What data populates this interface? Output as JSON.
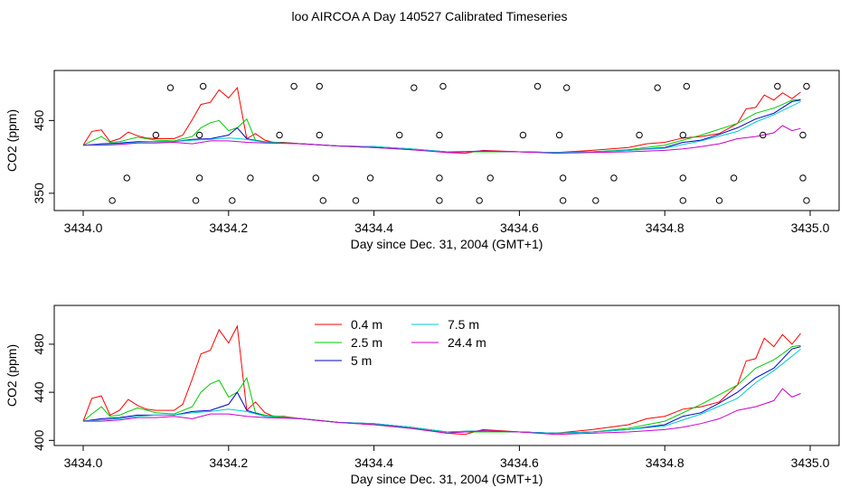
{
  "title": "loo AIRCOA A  Day 140527  Calibrated Timeseries",
  "chart_data": [
    {
      "type": "scatter",
      "xlabel": "Day since Dec. 31, 2004 (GMT+1)",
      "ylabel": "CO2 (ppm)",
      "xlim": [
        3434.0,
        3435.0
      ],
      "ylim": [
        330,
        515
      ],
      "x_ticks": [
        3434.0,
        3434.2,
        3434.4,
        3434.6,
        3434.8,
        3435.0
      ],
      "x_tick_labels": [
        "3434.0",
        "3434.2",
        "3434.4",
        "3434.6",
        "3434.8",
        "3435.0"
      ],
      "y_ticks": [
        350,
        450
      ],
      "y_tick_labels": [
        "350",
        "450"
      ],
      "grid": false,
      "series": [
        {
          "color": "#ff0000",
          "x": [
            3434.0,
            3434.012,
            3434.025,
            3434.037,
            3434.05,
            3434.062,
            3434.075,
            3434.087,
            3434.1,
            3434.112,
            3434.125,
            3434.137,
            3434.15,
            3434.162,
            3434.175,
            3434.187,
            3434.2,
            3434.212,
            3434.225,
            3434.237,
            3434.25,
            3434.262,
            3434.275,
            3434.3,
            3434.35,
            3434.4,
            3434.45,
            3434.5,
            3434.525,
            3434.55,
            3434.6,
            3434.65,
            3434.7,
            3434.75,
            3434.775,
            3434.8,
            3434.825,
            3434.85,
            3434.875,
            3434.9,
            3434.912,
            3434.925,
            3434.937,
            3434.95,
            3434.962,
            3434.975,
            3434.987
          ],
          "y": [
            416,
            435,
            437,
            421,
            425,
            434,
            429,
            426,
            425,
            425,
            425,
            430,
            451,
            472,
            475,
            492,
            481,
            495,
            425,
            432,
            423,
            420,
            420,
            418,
            415,
            413,
            411,
            406,
            405,
            409,
            407,
            406,
            409,
            413,
            418,
            420,
            426,
            428,
            432,
            446,
            466,
            468,
            485,
            478,
            488,
            480,
            489
          ]
        },
        {
          "color": "#00cc00",
          "x": [
            3434.0,
            3434.012,
            3434.025,
            3434.037,
            3434.05,
            3434.062,
            3434.075,
            3434.1,
            3434.125,
            3434.15,
            3434.162,
            3434.175,
            3434.187,
            3434.2,
            3434.212,
            3434.225,
            3434.237,
            3434.25,
            3434.3,
            3434.35,
            3434.4,
            3434.45,
            3434.5,
            3434.55,
            3434.6,
            3434.65,
            3434.7,
            3434.75,
            3434.8,
            3434.85,
            3434.9,
            3434.925,
            3434.95,
            3434.962,
            3434.975,
            3434.987
          ],
          "y": [
            416,
            422,
            428,
            420,
            421,
            424,
            427,
            423,
            422,
            428,
            440,
            447,
            450,
            436,
            440,
            452,
            423,
            421,
            418,
            415,
            413,
            410,
            407,
            407,
            407,
            406,
            407,
            410,
            416,
            430,
            446,
            460,
            467,
            472,
            478,
            479
          ]
        },
        {
          "color": "#0000cc",
          "x": [
            3434.0,
            3434.025,
            3434.05,
            3434.075,
            3434.1,
            3434.125,
            3434.15,
            3434.175,
            3434.2,
            3434.212,
            3434.225,
            3434.25,
            3434.3,
            3434.35,
            3434.4,
            3434.45,
            3434.5,
            3434.55,
            3434.6,
            3434.65,
            3434.7,
            3434.75,
            3434.8,
            3434.825,
            3434.85,
            3434.875,
            3434.9,
            3434.925,
            3434.95,
            3434.975,
            3434.987
          ],
          "y": [
            416,
            418,
            419,
            421,
            421,
            421,
            424,
            425,
            430,
            440,
            425,
            420,
            418,
            415,
            414,
            411,
            407,
            408,
            407,
            406,
            407,
            409,
            413,
            420,
            423,
            431,
            440,
            452,
            460,
            476,
            478
          ]
        },
        {
          "color": "#00cccc",
          "x": [
            3434.0,
            3434.025,
            3434.05,
            3434.075,
            3434.1,
            3434.125,
            3434.15,
            3434.175,
            3434.2,
            3434.225,
            3434.25,
            3434.3,
            3434.35,
            3434.4,
            3434.45,
            3434.5,
            3434.55,
            3434.6,
            3434.65,
            3434.7,
            3434.75,
            3434.8,
            3434.85,
            3434.9,
            3434.925,
            3434.95,
            3434.975,
            3434.987
          ],
          "y": [
            416,
            417,
            418,
            420,
            421,
            421,
            423,
            424,
            426,
            424,
            420,
            418,
            415,
            414,
            411,
            407,
            408,
            407,
            406,
            407,
            409,
            412,
            422,
            435,
            448,
            458,
            470,
            476
          ]
        },
        {
          "color": "#cc00cc",
          "x": [
            3434.0,
            3434.025,
            3434.05,
            3434.075,
            3434.1,
            3434.125,
            3434.15,
            3434.175,
            3434.2,
            3434.225,
            3434.25,
            3434.3,
            3434.35,
            3434.4,
            3434.45,
            3434.5,
            3434.55,
            3434.6,
            3434.65,
            3434.7,
            3434.75,
            3434.8,
            3434.825,
            3434.85,
            3434.875,
            3434.9,
            3434.925,
            3434.95,
            3434.962,
            3434.975,
            3434.987
          ],
          "y": [
            416,
            416,
            417,
            419,
            419,
            420,
            418,
            422,
            422,
            420,
            419,
            418,
            415,
            413,
            410,
            406,
            408,
            407,
            405,
            406,
            407,
            409,
            411,
            414,
            418,
            425,
            428,
            433,
            443,
            436,
            439
          ]
        }
      ],
      "points": {
        "x": [
          3434.04,
          3434.06,
          3434.1,
          3434.12,
          3434.155,
          3434.16,
          3434.16,
          3434.165,
          3434.205,
          3434.23,
          3434.27,
          3434.29,
          3434.32,
          3434.325,
          3434.325,
          3434.33,
          3434.375,
          3434.395,
          3434.435,
          3434.455,
          3434.49,
          3434.49,
          3434.49,
          3434.495,
          3434.545,
          3434.56,
          3434.605,
          3434.625,
          3434.655,
          3434.66,
          3434.66,
          3434.665,
          3434.705,
          3434.73,
          3434.765,
          3434.79,
          3434.825,
          3434.825,
          3434.825,
          3434.83,
          3434.875,
          3434.895,
          3434.935,
          3434.955,
          3434.99,
          3434.99,
          3434.995,
          3434.995
        ],
        "y": [
          340,
          371,
          430,
          495,
          340,
          371,
          430,
          497,
          340,
          371,
          430,
          497,
          371,
          430,
          497,
          340,
          340,
          371,
          430,
          495,
          340,
          371,
          430,
          497,
          340,
          371,
          430,
          497,
          430,
          371,
          340,
          495,
          340,
          371,
          430,
          495,
          430,
          371,
          340,
          497,
          340,
          371,
          430,
          497,
          430,
          371,
          497,
          340
        ]
      }
    },
    {
      "type": "line",
      "xlabel": "Day since Dec. 31, 2004 (GMT+1)",
      "ylabel": "CO2 (ppm)",
      "xlim": [
        3434.0,
        3435.0
      ],
      "ylim": [
        398,
        510
      ],
      "x_ticks": [
        3434.0,
        3434.2,
        3434.4,
        3434.6,
        3434.8,
        3435.0
      ],
      "x_tick_labels": [
        "3434.0",
        "3434.2",
        "3434.4",
        "3434.6",
        "3434.8",
        "3435.0"
      ],
      "y_ticks": [
        400,
        440,
        480
      ],
      "y_tick_labels": [
        "400",
        "440",
        "480"
      ],
      "grid": false,
      "legend": {
        "placement": "top-left",
        "entries": [
          {
            "label": "0.4 m",
            "color": "#ff0000"
          },
          {
            "label": "2.5 m",
            "color": "#00cc00"
          },
          {
            "label": "5 m",
            "color": "#0000cc"
          },
          {
            "label": "7.5 m",
            "color": "#00cccc"
          },
          {
            "label": "24.4 m",
            "color": "#cc00cc"
          }
        ]
      },
      "series": [
        {
          "name": "0.4 m",
          "color": "#ff0000",
          "x": [
            3434.0,
            3434.012,
            3434.025,
            3434.037,
            3434.05,
            3434.062,
            3434.075,
            3434.087,
            3434.1,
            3434.112,
            3434.125,
            3434.137,
            3434.15,
            3434.162,
            3434.175,
            3434.187,
            3434.2,
            3434.212,
            3434.225,
            3434.237,
            3434.25,
            3434.262,
            3434.275,
            3434.3,
            3434.35,
            3434.4,
            3434.45,
            3434.5,
            3434.525,
            3434.55,
            3434.6,
            3434.65,
            3434.7,
            3434.75,
            3434.775,
            3434.8,
            3434.825,
            3434.85,
            3434.875,
            3434.9,
            3434.912,
            3434.925,
            3434.937,
            3434.95,
            3434.962,
            3434.975,
            3434.987
          ],
          "y": [
            416,
            435,
            437,
            421,
            425,
            434,
            429,
            426,
            425,
            425,
            425,
            430,
            451,
            472,
            475,
            492,
            481,
            495,
            425,
            432,
            423,
            420,
            420,
            418,
            415,
            413,
            411,
            406,
            405,
            409,
            407,
            406,
            409,
            413,
            418,
            420,
            426,
            428,
            432,
            446,
            466,
            468,
            485,
            478,
            488,
            480,
            489
          ]
        },
        {
          "name": "2.5 m",
          "color": "#00cc00",
          "x": [
            3434.0,
            3434.012,
            3434.025,
            3434.037,
            3434.05,
            3434.062,
            3434.075,
            3434.1,
            3434.125,
            3434.15,
            3434.162,
            3434.175,
            3434.187,
            3434.2,
            3434.212,
            3434.225,
            3434.237,
            3434.25,
            3434.3,
            3434.35,
            3434.4,
            3434.45,
            3434.5,
            3434.55,
            3434.6,
            3434.65,
            3434.7,
            3434.75,
            3434.8,
            3434.85,
            3434.9,
            3434.925,
            3434.95,
            3434.962,
            3434.975,
            3434.987
          ],
          "y": [
            416,
            422,
            428,
            420,
            421,
            424,
            427,
            423,
            422,
            428,
            440,
            447,
            450,
            436,
            440,
            452,
            423,
            421,
            418,
            415,
            413,
            410,
            407,
            407,
            407,
            406,
            407,
            410,
            416,
            430,
            446,
            460,
            467,
            472,
            478,
            479
          ]
        },
        {
          "name": "5 m",
          "color": "#0000cc",
          "x": [
            3434.0,
            3434.025,
            3434.05,
            3434.075,
            3434.1,
            3434.125,
            3434.15,
            3434.175,
            3434.2,
            3434.212,
            3434.225,
            3434.25,
            3434.3,
            3434.35,
            3434.4,
            3434.45,
            3434.5,
            3434.55,
            3434.6,
            3434.65,
            3434.7,
            3434.75,
            3434.8,
            3434.825,
            3434.85,
            3434.875,
            3434.9,
            3434.925,
            3434.95,
            3434.975,
            3434.987
          ],
          "y": [
            416,
            418,
            419,
            421,
            421,
            421,
            424,
            425,
            430,
            440,
            425,
            420,
            418,
            415,
            414,
            411,
            407,
            408,
            407,
            406,
            407,
            409,
            413,
            420,
            423,
            431,
            440,
            452,
            460,
            476,
            478
          ]
        },
        {
          "name": "7.5 m",
          "color": "#00cccc",
          "x": [
            3434.0,
            3434.025,
            3434.05,
            3434.075,
            3434.1,
            3434.125,
            3434.15,
            3434.175,
            3434.2,
            3434.225,
            3434.25,
            3434.3,
            3434.35,
            3434.4,
            3434.45,
            3434.5,
            3434.55,
            3434.6,
            3434.65,
            3434.7,
            3434.75,
            3434.8,
            3434.85,
            3434.9,
            3434.925,
            3434.95,
            3434.975,
            3434.987
          ],
          "y": [
            416,
            417,
            418,
            420,
            421,
            421,
            423,
            424,
            426,
            424,
            420,
            418,
            415,
            414,
            411,
            407,
            408,
            407,
            406,
            407,
            409,
            412,
            422,
            435,
            448,
            458,
            470,
            476
          ]
        },
        {
          "name": "24.4 m",
          "color": "#cc00cc",
          "x": [
            3434.0,
            3434.025,
            3434.05,
            3434.075,
            3434.1,
            3434.125,
            3434.15,
            3434.175,
            3434.2,
            3434.225,
            3434.25,
            3434.3,
            3434.35,
            3434.4,
            3434.45,
            3434.5,
            3434.55,
            3434.6,
            3434.65,
            3434.7,
            3434.75,
            3434.8,
            3434.825,
            3434.85,
            3434.875,
            3434.9,
            3434.925,
            3434.95,
            3434.962,
            3434.975,
            3434.987
          ],
          "y": [
            416,
            416,
            417,
            419,
            419,
            420,
            418,
            422,
            422,
            420,
            419,
            418,
            415,
            413,
            410,
            406,
            408,
            407,
            405,
            406,
            407,
            409,
            411,
            414,
            418,
            425,
            428,
            433,
            443,
            436,
            439
          ]
        }
      ]
    }
  ]
}
